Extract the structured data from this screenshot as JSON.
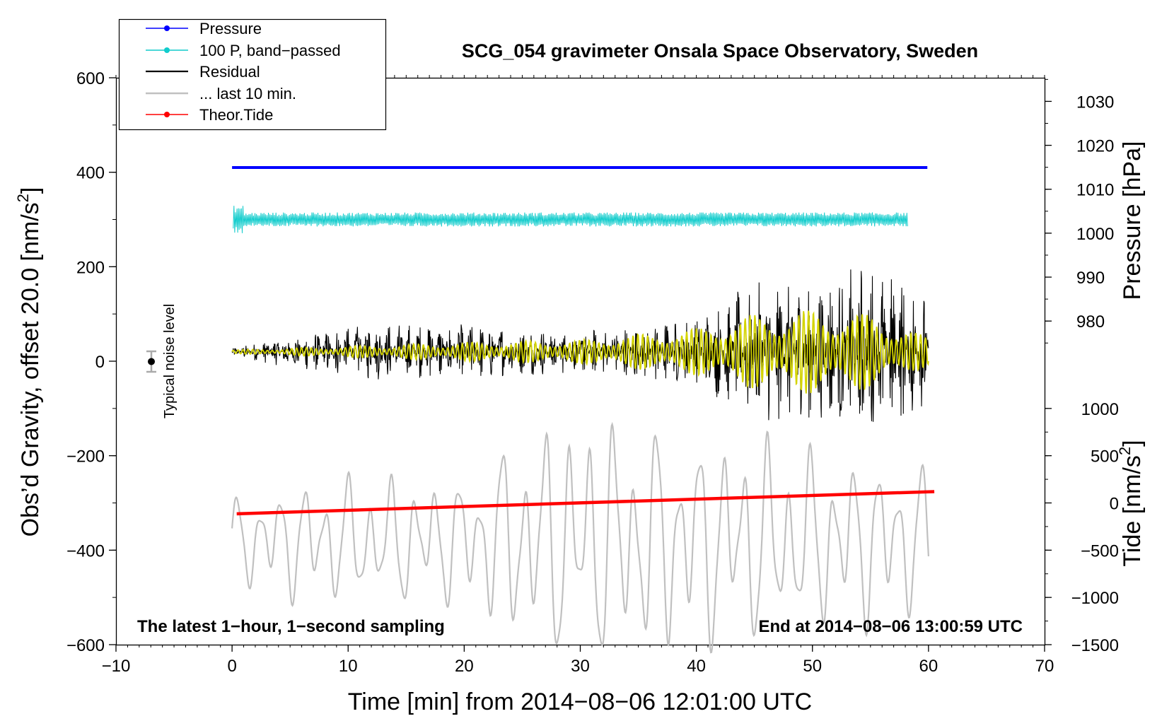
{
  "chart_data": {
    "type": "line",
    "title": "SCG_054 gravimeter Onsala Space Observatory, Sweden",
    "xlabel": "Time [min] from 2014−08−06 12:01:00 UTC",
    "ylabel_left": "Obs’d Gravity, offset 20.0 [nm/s",
    "ylabel_left_sup": "2",
    "ylabel_left_close": "]",
    "ylabel_right_pressure": "Pressure [hPa]",
    "ylabel_right_tide": "Tide [nm/s",
    "ylabel_right_tide_sup": "2",
    "ylabel_right_tide_close": "]",
    "xlim": [
      -10,
      70
    ],
    "ylim": [
      -600,
      600
    ],
    "x_ticks": [
      -10,
      0,
      10,
      20,
      30,
      40,
      50,
      60,
      70
    ],
    "x_tick_labels": [
      "−10",
      "0",
      "10",
      "20",
      "30",
      "40",
      "50",
      "60",
      "70"
    ],
    "y_ticks": [
      -600,
      -400,
      -200,
      0,
      200,
      400,
      600
    ],
    "y_tick_labels": [
      "−600",
      "−400",
      "−200",
      "0",
      "200",
      "400",
      "600"
    ],
    "pressure_axis": {
      "ticks": [
        980,
        990,
        1000,
        1010,
        1020,
        1030
      ],
      "labels": [
        "980",
        "990",
        "1000",
        "1010",
        "1020",
        "1030"
      ],
      "ref_value": 1000,
      "ref_left": 271,
      "units_per_10hpa": 93
    },
    "tide_axis": {
      "ticks": [
        -1500,
        -1000,
        -500,
        0,
        500,
        1000
      ],
      "labels": [
        "−1500",
        "−1000",
        "−500",
        "0",
        "500",
        "1000"
      ],
      "ref_value": 0,
      "ref_left": -300,
      "units_per_500": 100
    },
    "legend": {
      "placement": "top-left",
      "entries": [
        {
          "label": "Pressure",
          "color": "#0000ff",
          "marker": true
        },
        {
          "label": "100 P, band−passed",
          "color": "#11cccc",
          "marker": true
        },
        {
          "label": "Residual",
          "color": "#000000",
          "marker": false
        },
        {
          "label": "... last 10 min.",
          "color": "#c0c0c0",
          "marker": false
        },
        {
          "label": "Theor.Tide",
          "color": "#ff0000",
          "marker": true
        }
      ]
    },
    "annotations": {
      "bottom_left": "The latest 1−hour, 1−second sampling",
      "bottom_right": "End at 2014−08−06 13:00:59 UTC",
      "noise_label": "Typical noise level",
      "noise_marker": {
        "x": -7,
        "y": 0,
        "err": 20
      }
    },
    "series": [
      {
        "name": "Pressure",
        "color": "#0000ff",
        "x_range": [
          0,
          59.9
        ],
        "left_value": 410
      },
      {
        "name": "100 P, band−passed",
        "color": "#11cccc",
        "x_range": [
          0.1,
          58.2
        ],
        "left_value": 300,
        "amplitude": 15
      },
      {
        "name": "Residual",
        "color": "#000000",
        "x_range": [
          0,
          60
        ],
        "left_value": 20,
        "envelope": [
          [
            0,
            8
          ],
          [
            4,
            30
          ],
          [
            12,
            60
          ],
          [
            20,
            60
          ],
          [
            30,
            45
          ],
          [
            40,
            75
          ],
          [
            45,
            150
          ],
          [
            50,
            150
          ],
          [
            55,
            190
          ],
          [
            60,
            130
          ]
        ]
      },
      {
        "name": "band-passed residual",
        "color": "#d4d400",
        "x_range": [
          0,
          60
        ],
        "left_value": 20,
        "envelope": [
          [
            0,
            4
          ],
          [
            10,
            12
          ],
          [
            20,
            20
          ],
          [
            30,
            25
          ],
          [
            40,
            50
          ],
          [
            45,
            80
          ],
          [
            50,
            90
          ],
          [
            55,
            80
          ],
          [
            60,
            30
          ]
        ]
      },
      {
        "name": "... last 10 min.",
        "color": "#c0c0c0",
        "x_range": [
          0,
          60
        ],
        "left_value": -380,
        "envelope": [
          [
            0,
            80
          ],
          [
            5,
            110
          ],
          [
            10,
            120
          ],
          [
            20,
            120
          ],
          [
            25,
            200
          ],
          [
            30,
            240
          ],
          [
            35,
            220
          ],
          [
            40,
            200
          ],
          [
            45,
            200
          ],
          [
            50,
            170
          ],
          [
            55,
            160
          ],
          [
            60,
            140
          ]
        ]
      },
      {
        "name": "Theor.Tide",
        "color": "#ff0000",
        "x_range": [
          0.4,
          60.5
        ],
        "values": [
          -323,
          -276
        ]
      }
    ]
  }
}
